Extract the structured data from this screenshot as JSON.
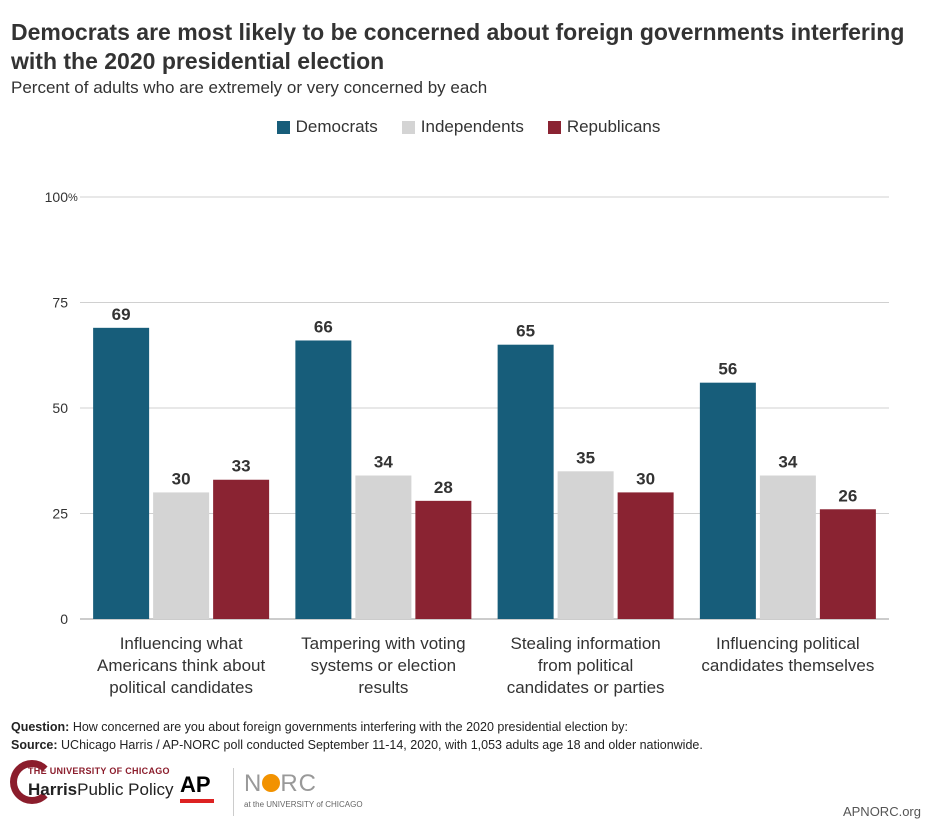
{
  "title": "Democrats are most likely to be concerned about foreign governments interfering with the 2020 presidential election",
  "subtitle": "Percent of adults who are extremely or very concerned by each",
  "colors": {
    "democrats": "#175d7a",
    "independents": "#d4d4d4",
    "republicans": "#8a2332"
  },
  "chart_data": {
    "type": "bar",
    "categories": [
      [
        "Influencing what",
        "Americans think about",
        "political candidates"
      ],
      [
        "Tampering with voting",
        "systems or election",
        "results"
      ],
      [
        "Stealing information",
        "from political",
        "candidates or parties"
      ],
      [
        "Influencing political",
        "candidates themselves"
      ]
    ],
    "series": [
      {
        "name": "Democrats",
        "values": [
          69,
          66,
          65,
          56
        ]
      },
      {
        "name": "Independents",
        "values": [
          30,
          34,
          35,
          34
        ]
      },
      {
        "name": "Republicans",
        "values": [
          33,
          28,
          30,
          26
        ]
      }
    ],
    "y_ticks": [
      "0",
      "25",
      "50",
      "75",
      "100"
    ],
    "y_top_suffix": "%",
    "ylim": [
      0,
      100
    ],
    "grid": true,
    "legend_position": "top"
  },
  "footnote": {
    "question_label": "Question:",
    "question_text": " How concerned are you about foreign governments interfering with the 2020 presidential election by:",
    "source_label": "Source:",
    "source_text": " UChicago Harris / AP-NORC poll conducted September 11-14, 2020,  with 1,053 adults age 18 and older nationwide."
  },
  "logos": {
    "uc_line1": "THE UNIVERSITY OF CHICAGO",
    "uc_harris": "Harris",
    "uc_policy": "Public Policy",
    "ap": "AP",
    "norc_n": "N",
    "norc_rc": "RC",
    "norc_sub": "at the UNIVERSITY of CHICAGO",
    "site": "APNORC.org"
  }
}
